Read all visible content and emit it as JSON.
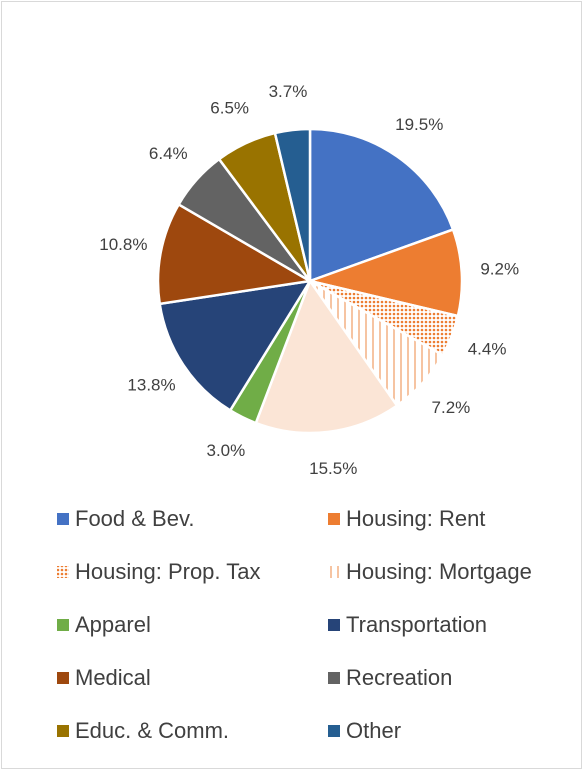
{
  "chart_data": {
    "type": "pie",
    "categories": [
      "Food & Bev.",
      "Housing: Rent",
      "Housing: Prop. Tax",
      "Housing: Mortgage",
      null,
      "Apparel",
      "Transportation",
      "Medical",
      "Recreation",
      "Educ. & Comm.",
      "Other"
    ],
    "values": [
      19.5,
      9.2,
      4.4,
      7.2,
      15.5,
      3.0,
      13.8,
      10.8,
      6.4,
      6.5,
      3.7
    ],
    "value_labels": [
      "19.5%",
      "9.2%",
      "4.4%",
      "7.2%",
      "15.5%",
      "3.0%",
      "13.8%",
      "10.8%",
      "6.4%",
      "6.5%",
      "3.7%"
    ],
    "colors": [
      "#4472c4",
      "#ed7d31",
      "#ed7d31",
      "#f4b183",
      "#fbe5d6",
      "#70ad47",
      "#264478",
      "#9e480e",
      "#636363",
      "#997300",
      "#255e91"
    ],
    "patterns": [
      null,
      null,
      "dots",
      "vertical-lines",
      null,
      null,
      null,
      null,
      null,
      null,
      null
    ],
    "legend": "bottom"
  }
}
